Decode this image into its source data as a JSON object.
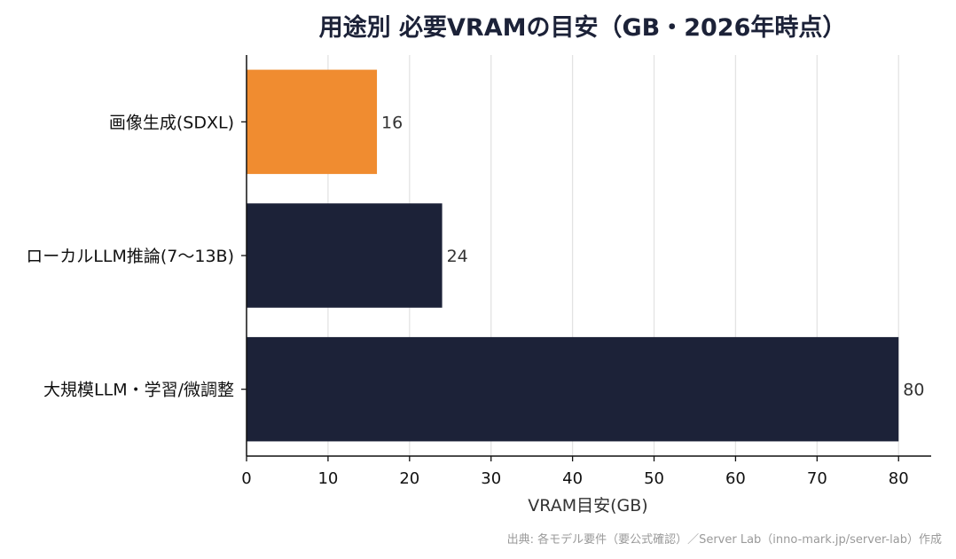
{
  "chart_data": {
    "type": "bar",
    "orientation": "horizontal",
    "title": "用途別 必要VRAMの目安（GB・2026年時点）",
    "categories": [
      "画像生成(SDXL)",
      "ローカルLLM推論(7〜13B)",
      "大規模LLM・学習/微調整"
    ],
    "values": [
      16,
      24,
      80
    ],
    "value_labels": [
      "16",
      "24",
      "80"
    ],
    "bar_colors": [
      "#F08C30",
      "#1C2238",
      "#1C2238"
    ],
    "xlabel": "VRAM目安(GB)",
    "ylabel": "",
    "xlim": [
      0,
      84
    ],
    "xticks": [
      0,
      10,
      20,
      30,
      40,
      50,
      60,
      70,
      80
    ],
    "xtick_labels": [
      "0",
      "10",
      "20",
      "30",
      "40",
      "50",
      "60",
      "70",
      "80"
    ],
    "grid": "vertical",
    "legend": "none",
    "source": "出典: 各モデル要件（要公式確認）／Server Lab（inno-mark.jp/server-lab）作成"
  }
}
